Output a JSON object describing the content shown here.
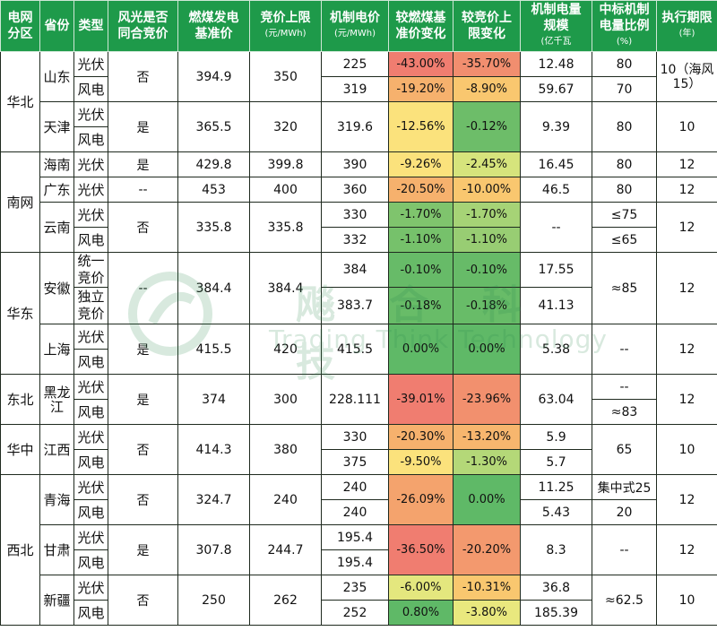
{
  "header": {
    "grid": "电网\n分区",
    "province": "省份",
    "type": "类型",
    "same_auction": "风光是否\n同合竞价",
    "coal_price": "燃煤发电\n基准价",
    "cap_title": "竞价上限",
    "cap_unit": "(元/MWh)",
    "mech_title": "机制电价",
    "mech_unit": "(元/MWh)",
    "vs_coal": "较燃煤基\n准价变化",
    "vs_cap": "较竞价上\n限变化",
    "scale_title": "机制电量\n规模",
    "scale_unit": "(亿千瓦",
    "ratio_title": "中标机制\n电量比例",
    "ratio_unit": "(%)",
    "period_title": "执行期限",
    "period_unit": "(年)"
  },
  "regions": {
    "north": "华北",
    "south": "南网",
    "east": "华东",
    "northeast": "东北",
    "central": "华中",
    "northwest": "西北"
  },
  "types": {
    "pv": "光伏",
    "wind": "风电",
    "unified": "统一竞价",
    "independent": "独立竞价"
  },
  "rows": {
    "shandong": {
      "prov": "山东",
      "same": "否",
      "coal": "394.9",
      "cap": "350",
      "pv": {
        "mech": "225",
        "vc": "-43.00%",
        "vp": "-35.70%",
        "scale": "12.48",
        "ratio": "80"
      },
      "wind": {
        "mech": "319",
        "vc": "-19.20%",
        "vp": "-8.90%",
        "scale": "59.67",
        "ratio": "70"
      },
      "period": "10（海风15）"
    },
    "tianjin": {
      "prov": "天津",
      "same": "是",
      "coal": "365.5",
      "cap": "320",
      "mech": "319.6",
      "vc": "-12.56%",
      "vp": "-0.12%",
      "scale": "9.39",
      "ratio": "80",
      "period": "10"
    },
    "hainan": {
      "prov": "海南",
      "same": "是",
      "coal": "429.8",
      "cap": "399.8",
      "mech": "390",
      "vc": "-9.26%",
      "vp": "-2.45%",
      "scale": "16.45",
      "ratio": "80",
      "period": "12"
    },
    "guangdong": {
      "prov": "广东",
      "same": "--",
      "coal": "453",
      "cap": "400",
      "mech": "360",
      "vc": "-20.50%",
      "vp": "-10.00%",
      "scale": "46.5",
      "ratio": "80",
      "period": "12"
    },
    "yunnan": {
      "prov": "云南",
      "same": "否",
      "coal": "335.8",
      "cap": "335.8",
      "scale": "--",
      "period": "12",
      "pv": {
        "mech": "330",
        "vc": "-1.70%",
        "vp": "-1.70%",
        "ratio": "≤75"
      },
      "wind": {
        "mech": "332",
        "vc": "-1.10%",
        "vp": "-1.10%",
        "ratio": "≤65"
      }
    },
    "anhui": {
      "prov": "安徽",
      "same": "--",
      "coal": "384.4",
      "cap": "384.4",
      "ratio": "≈85",
      "period": "12",
      "u": {
        "mech": "384",
        "vc": "-0.10%",
        "vp": "-0.10%",
        "scale": "17.55"
      },
      "i": {
        "mech": "383.7",
        "vc": "-0.18%",
        "vp": "-0.18%",
        "scale": "41.13"
      }
    },
    "shanghai": {
      "prov": "上海",
      "same": "是",
      "coal": "415.5",
      "cap": "420",
      "mech": "415.5",
      "vc": "0.00%",
      "vp": "0.00%",
      "scale": "5.38",
      "ratio": "--",
      "period": "12"
    },
    "heilongjiang": {
      "prov": "黑龙江",
      "same": "是",
      "coal": "374",
      "cap": "300",
      "mech": "228.111",
      "vc": "-39.01%",
      "vp": "-23.96%",
      "scale": "63.04",
      "period": "12",
      "pv_ratio": "--",
      "wind_ratio": "≈83"
    },
    "jiangxi": {
      "prov": "江西",
      "same": "否",
      "coal": "414.3",
      "cap": "380",
      "ratio": "65",
      "period": "10",
      "pv": {
        "mech": "330",
        "vc": "-20.30%",
        "vp": "-13.20%",
        "scale": "5.9"
      },
      "wind": {
        "mech": "375",
        "vc": "-9.50%",
        "vp": "-1.30%",
        "scale": "5.7"
      }
    },
    "qinghai": {
      "prov": "青海",
      "same": "否",
      "coal": "324.7",
      "cap": "240",
      "vc": "-26.09%",
      "vp": "0.00%",
      "period": "12",
      "pv": {
        "mech": "240",
        "scale": "11.25",
        "ratio": "集中式25"
      },
      "wind": {
        "mech": "240",
        "scale": "5.43",
        "ratio": "20"
      }
    },
    "gansu": {
      "prov": "甘肃",
      "same": "是",
      "coal": "307.8",
      "cap": "244.7",
      "vc": "-36.50%",
      "vp": "-20.20%",
      "scale": "8.3",
      "ratio": "--",
      "period": "12",
      "pv": {
        "mech": "195.4"
      },
      "wind": {
        "mech": "195.4"
      }
    },
    "xinjiang": {
      "prov": "新疆",
      "same": "否",
      "coal": "250",
      "cap": "262",
      "ratio": "≈62.5",
      "period": "10",
      "pv": {
        "mech": "235",
        "vc": "-6.00%",
        "vp": "-10.31%",
        "scale": "36.8"
      },
      "wind": {
        "mech": "252",
        "vc": "0.80%",
        "vp": "-3.80%",
        "scale": "185.39"
      }
    }
  },
  "colors": {
    "header_green": "#1e9a4a",
    "c_red": "#f07d70",
    "c_red2": "#f18e6f",
    "c_orange": "#f6b16d",
    "c_orange2": "#f9c76f",
    "c_yellow": "#fbe27c",
    "c_lime": "#c8e17a",
    "c_green1": "#a6d376",
    "c_green2": "#7fc46d",
    "c_green": "#5fb967"
  },
  "watermark": {
    "cn": "飚合科技",
    "en": "Trading Think Technology"
  }
}
